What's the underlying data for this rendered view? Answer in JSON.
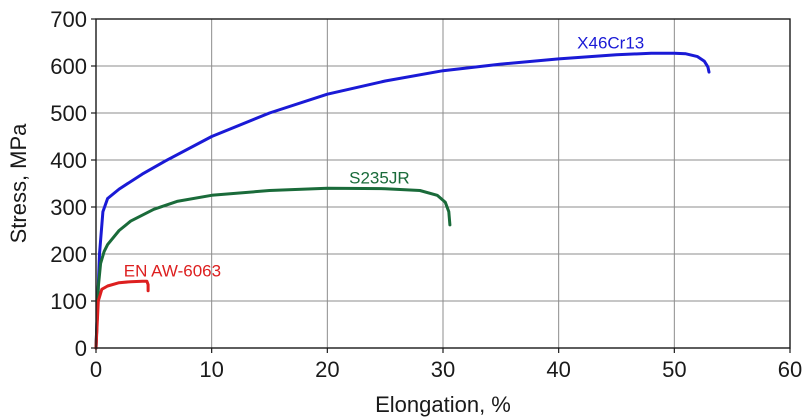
{
  "chart_data": {
    "type": "line",
    "xlabel": "Elongation, %",
    "ylabel": "Stress, MPa",
    "xlim": [
      0,
      60
    ],
    "ylim": [
      0,
      700
    ],
    "x_ticks": [
      0,
      10,
      20,
      30,
      40,
      50,
      60
    ],
    "y_ticks": [
      0,
      100,
      200,
      300,
      400,
      500,
      600,
      700
    ],
    "grid": true,
    "legend": "none (series labelled directly on curves)",
    "series": [
      {
        "name": "X46Cr13",
        "color": "#1a1ad6",
        "x": [
          0,
          0.3,
          0.6,
          1,
          2,
          4,
          6,
          10,
          15,
          20,
          25,
          30,
          35,
          40,
          45,
          48,
          50,
          51,
          52,
          52.6,
          52.9,
          53
        ],
        "y": [
          0,
          200,
          290,
          318,
          338,
          370,
          398,
          450,
          500,
          540,
          568,
          590,
          604,
          615,
          624,
          627,
          627,
          626,
          620,
          610,
          598,
          587
        ]
      },
      {
        "name": "S235JR",
        "color": "#1a6b3a",
        "x": [
          0,
          0.2,
          0.4,
          0.7,
          1,
          2,
          3,
          5,
          7,
          10,
          15,
          20,
          25,
          28,
          29.5,
          30.2,
          30.5,
          30.6
        ],
        "y": [
          0,
          130,
          180,
          205,
          220,
          250,
          270,
          295,
          312,
          325,
          335,
          340,
          339,
          335,
          325,
          310,
          290,
          262
        ]
      },
      {
        "name": "EN AW-6063",
        "color": "#dd1f1f",
        "x": [
          0,
          0.2,
          0.5,
          1,
          2,
          3,
          4,
          4.4,
          4.5,
          4.5
        ],
        "y": [
          0,
          100,
          125,
          132,
          139,
          141,
          142,
          142,
          135,
          122
        ]
      }
    ]
  }
}
